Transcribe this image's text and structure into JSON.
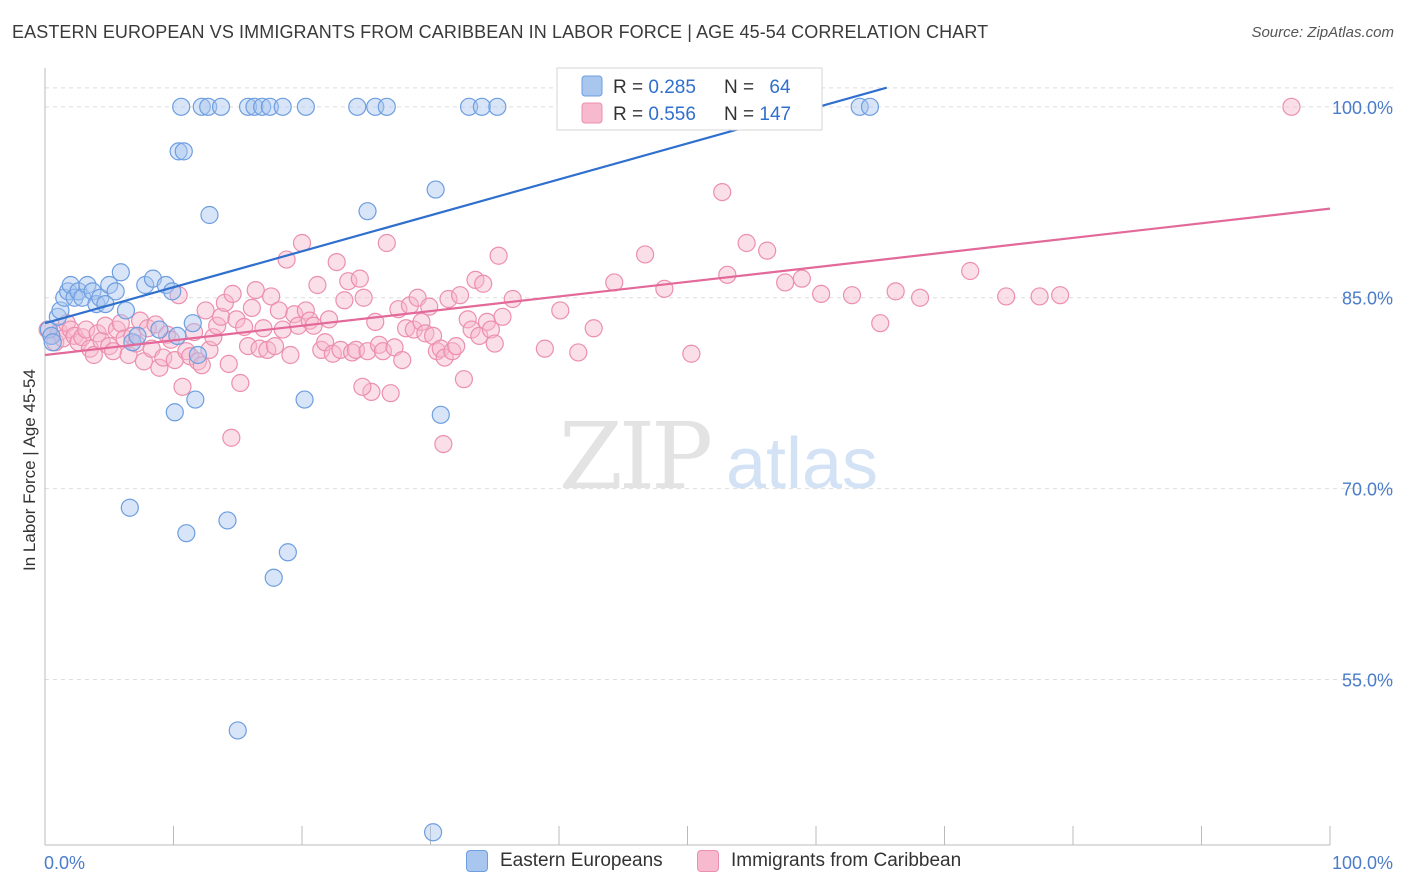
{
  "title": "EASTERN EUROPEAN VS IMMIGRANTS FROM CARIBBEAN IN LABOR FORCE | AGE 45-54 CORRELATION CHART",
  "source": "Source: ZipAtlas.com",
  "watermark": {
    "zip": "ZIP",
    "atlas": "atlas"
  },
  "colors": {
    "blue_fill": "#a9c6ef",
    "blue_stroke": "#6d9ee0",
    "blue_line": "#2f6fcd",
    "pink_fill": "#f6b9cd",
    "pink_stroke": "#ec8fae",
    "pink_line": "#e2699a",
    "axis_label": "#4a7cc9",
    "grid": "#dddddd"
  },
  "legend_stats": [
    {
      "r_label": "R = ",
      "r_value": "0.285",
      "n_label": "N = ",
      "n_value": "64",
      "color": "blue"
    },
    {
      "r_label": "R = ",
      "r_value": "0.556",
      "n_label": "N = ",
      "n_value": "147",
      "color": "pink"
    }
  ],
  "legend_bottom": [
    {
      "label": "Eastern Europeans",
      "color": "blue"
    },
    {
      "label": "Immigrants from Caribbean",
      "color": "pink"
    }
  ],
  "chart_data": {
    "type": "scatter",
    "ylabel": "In Labor Force | Age 45-54",
    "x_tick_labels": [
      "0.0%",
      "100.0%"
    ],
    "y_tick_labels": [
      "100.0%",
      "85.0%",
      "70.0%",
      "55.0%"
    ],
    "y_ticks": [
      100,
      85,
      70,
      55
    ],
    "xlim": [
      0,
      100
    ],
    "ylim": [
      42,
      102.5
    ],
    "grid": true,
    "series": [
      {
        "name": "Eastern Europeans",
        "color": "blue",
        "trend": {
          "x": [
            0,
            65.5
          ],
          "y": [
            83.0,
            101.5
          ]
        },
        "points": [
          [
            0.3,
            82.5
          ],
          [
            0.5,
            82.0
          ],
          [
            0.6,
            81.5
          ],
          [
            1.0,
            83.5
          ],
          [
            1.2,
            84.0
          ],
          [
            1.5,
            85.0
          ],
          [
            1.8,
            85.5
          ],
          [
            2.0,
            86.0
          ],
          [
            2.3,
            85.0
          ],
          [
            2.6,
            85.5
          ],
          [
            2.9,
            85.0
          ],
          [
            3.3,
            86.0
          ],
          [
            3.7,
            85.5
          ],
          [
            4.0,
            84.5
          ],
          [
            4.3,
            85.0
          ],
          [
            4.7,
            84.5
          ],
          [
            5.0,
            86.0
          ],
          [
            5.5,
            85.5
          ],
          [
            5.9,
            87.0
          ],
          [
            6.3,
            84.0
          ],
          [
            6.8,
            81.5
          ],
          [
            7.2,
            82.0
          ],
          [
            7.8,
            86.0
          ],
          [
            8.4,
            86.5
          ],
          [
            8.9,
            82.5
          ],
          [
            9.4,
            86.0
          ],
          [
            9.9,
            85.5
          ],
          [
            10.3,
            82.0
          ],
          [
            10.1,
            76.0
          ],
          [
            11.5,
            83.0
          ],
          [
            11.9,
            80.5
          ],
          [
            10.6,
            100
          ],
          [
            12.2,
            100
          ],
          [
            12.7,
            100
          ],
          [
            13.7,
            100
          ],
          [
            15.8,
            100
          ],
          [
            16.3,
            100
          ],
          [
            16.9,
            100
          ],
          [
            17.5,
            100
          ],
          [
            18.5,
            100
          ],
          [
            20.3,
            100
          ],
          [
            24.3,
            100
          ],
          [
            25.7,
            100
          ],
          [
            26.6,
            100
          ],
          [
            33.0,
            100
          ],
          [
            34.0,
            100
          ],
          [
            35.2,
            100
          ],
          [
            63.4,
            100
          ],
          [
            64.2,
            100
          ],
          [
            10.4,
            96.5
          ],
          [
            10.8,
            96.5
          ],
          [
            12.8,
            91.5
          ],
          [
            25.1,
            91.8
          ],
          [
            30.4,
            93.5
          ],
          [
            11.7,
            77.0
          ],
          [
            20.2,
            77.0
          ],
          [
            30.8,
            75.8
          ],
          [
            6.6,
            68.5
          ],
          [
            11.0,
            66.5
          ],
          [
            14.2,
            67.5
          ],
          [
            17.8,
            63.0
          ],
          [
            18.9,
            65.0
          ],
          [
            15.0,
            51.0
          ],
          [
            30.2,
            43.0
          ]
        ]
      },
      {
        "name": "Immigrants from Caribbean",
        "color": "pink",
        "trend": {
          "x": [
            0,
            100
          ],
          "y": [
            80.5,
            92.0
          ]
        },
        "points": [
          [
            0.2,
            82.5
          ],
          [
            0.5,
            82.0
          ],
          [
            0.8,
            81.5
          ],
          [
            1.1,
            82.3
          ],
          [
            1.4,
            81.8
          ],
          [
            1.7,
            83.0
          ],
          [
            2.0,
            82.5
          ],
          [
            2.3,
            82.0
          ],
          [
            2.6,
            81.5
          ],
          [
            2.9,
            81.9
          ],
          [
            3.2,
            82.5
          ],
          [
            3.5,
            81.0
          ],
          [
            3.8,
            80.5
          ],
          [
            4.1,
            82.2
          ],
          [
            4.4,
            81.6
          ],
          [
            4.7,
            82.8
          ],
          [
            5.0,
            81.2
          ],
          [
            5.3,
            80.8
          ],
          [
            5.6,
            82.5
          ],
          [
            5.9,
            83.0
          ],
          [
            6.2,
            81.8
          ],
          [
            6.5,
            80.5
          ],
          [
            6.8,
            82.0
          ],
          [
            7.1,
            81.4
          ],
          [
            7.4,
            83.2
          ],
          [
            7.7,
            80.0
          ],
          [
            8.0,
            82.6
          ],
          [
            8.3,
            81.0
          ],
          [
            8.6,
            82.9
          ],
          [
            8.9,
            79.5
          ],
          [
            9.2,
            80.3
          ],
          [
            9.5,
            82.1
          ],
          [
            9.8,
            81.7
          ],
          [
            10.1,
            80.1
          ],
          [
            10.4,
            85.2
          ],
          [
            10.7,
            78.0
          ],
          [
            11.0,
            80.8
          ],
          [
            11.3,
            80.4
          ],
          [
            11.6,
            82.3
          ],
          [
            11.9,
            80.0
          ],
          [
            12.2,
            79.7
          ],
          [
            12.5,
            84.0
          ],
          [
            12.8,
            80.9
          ],
          [
            13.1,
            81.9
          ],
          [
            13.4,
            82.8
          ],
          [
            13.7,
            83.5
          ],
          [
            14.0,
            84.6
          ],
          [
            14.3,
            79.8
          ],
          [
            14.6,
            85.3
          ],
          [
            14.9,
            83.3
          ],
          [
            15.2,
            78.3
          ],
          [
            15.5,
            82.7
          ],
          [
            15.8,
            81.2
          ],
          [
            16.1,
            84.2
          ],
          [
            16.4,
            85.6
          ],
          [
            16.7,
            81.0
          ],
          [
            17.0,
            82.6
          ],
          [
            17.3,
            80.9
          ],
          [
            17.6,
            85.1
          ],
          [
            17.9,
            81.2
          ],
          [
            18.2,
            84.0
          ],
          [
            18.5,
            82.5
          ],
          [
            18.8,
            88.0
          ],
          [
            19.1,
            80.5
          ],
          [
            19.4,
            83.7
          ],
          [
            19.7,
            82.8
          ],
          [
            20.0,
            89.3
          ],
          [
            20.3,
            84.0
          ],
          [
            20.6,
            83.2
          ],
          [
            20.9,
            82.8
          ],
          [
            21.2,
            86.0
          ],
          [
            21.5,
            80.9
          ],
          [
            21.8,
            81.5
          ],
          [
            22.1,
            83.3
          ],
          [
            22.4,
            80.6
          ],
          [
            22.7,
            87.8
          ],
          [
            23.0,
            80.9
          ],
          [
            23.3,
            84.8
          ],
          [
            23.6,
            86.3
          ],
          [
            23.9,
            80.7
          ],
          [
            24.2,
            80.9
          ],
          [
            24.5,
            86.5
          ],
          [
            24.8,
            85.0
          ],
          [
            25.1,
            80.8
          ],
          [
            25.4,
            77.6
          ],
          [
            25.7,
            83.1
          ],
          [
            26.0,
            81.3
          ],
          [
            26.3,
            80.8
          ],
          [
            26.6,
            89.3
          ],
          [
            26.9,
            77.5
          ],
          [
            27.2,
            81.1
          ],
          [
            27.5,
            84.1
          ],
          [
            27.8,
            80.1
          ],
          [
            28.1,
            82.6
          ],
          [
            28.4,
            84.4
          ],
          [
            28.7,
            82.5
          ],
          [
            29.0,
            85.0
          ],
          [
            29.3,
            83.1
          ],
          [
            29.6,
            82.2
          ],
          [
            29.9,
            84.3
          ],
          [
            30.2,
            82.0
          ],
          [
            30.5,
            80.8
          ],
          [
            30.8,
            81.0
          ],
          [
            31.1,
            80.3
          ],
          [
            31.4,
            84.9
          ],
          [
            31.7,
            80.8
          ],
          [
            32.0,
            81.2
          ],
          [
            32.3,
            85.2
          ],
          [
            32.6,
            78.6
          ],
          [
            32.9,
            83.3
          ],
          [
            33.2,
            82.5
          ],
          [
            33.5,
            86.4
          ],
          [
            33.8,
            82.0
          ],
          [
            34.1,
            86.1
          ],
          [
            34.4,
            83.1
          ],
          [
            34.7,
            82.5
          ],
          [
            35.0,
            81.4
          ],
          [
            35.3,
            88.3
          ],
          [
            35.6,
            83.5
          ],
          [
            36.4,
            84.9
          ],
          [
            38.9,
            81.0
          ],
          [
            40.1,
            84.0
          ],
          [
            41.5,
            80.7
          ],
          [
            42.7,
            82.6
          ],
          [
            44.3,
            86.2
          ],
          [
            46.7,
            88.4
          ],
          [
            48.2,
            85.7
          ],
          [
            50.3,
            80.6
          ],
          [
            53.1,
            86.8
          ],
          [
            54.6,
            89.3
          ],
          [
            56.2,
            88.7
          ],
          [
            57.6,
            86.2
          ],
          [
            58.9,
            86.5
          ],
          [
            60.4,
            85.3
          ],
          [
            62.8,
            85.2
          ],
          [
            65.0,
            83.0
          ],
          [
            66.2,
            85.5
          ],
          [
            68.1,
            85.0
          ],
          [
            72.0,
            87.1
          ],
          [
            74.8,
            85.1
          ],
          [
            77.4,
            85.1
          ],
          [
            79.0,
            85.2
          ],
          [
            31.0,
            73.5
          ],
          [
            24.7,
            78.0
          ],
          [
            14.5,
            74.0
          ],
          [
            52.7,
            93.3
          ],
          [
            97.0,
            100.0
          ]
        ]
      }
    ]
  }
}
